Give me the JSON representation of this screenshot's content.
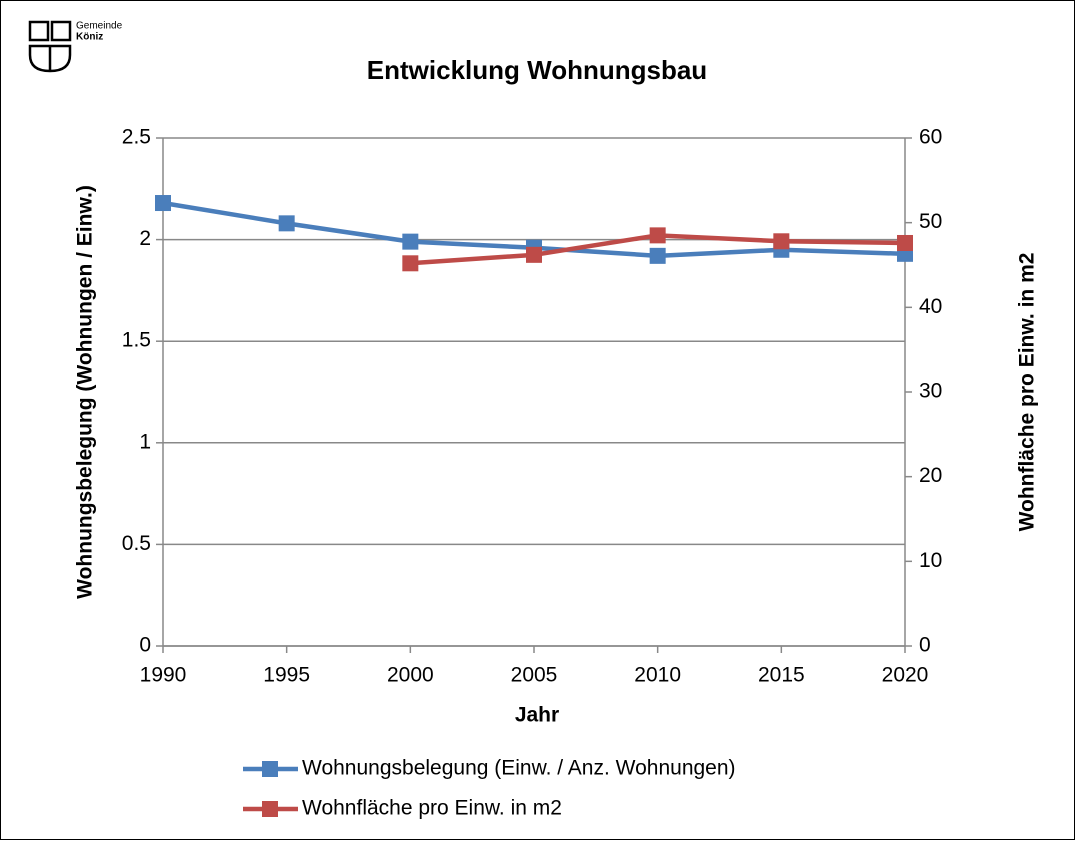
{
  "logo": {
    "line1": "Gemeinde",
    "line2": "Köniz"
  },
  "chart_data": {
    "type": "line",
    "title": "Entwicklung Wohnungsbau",
    "x": [
      1990,
      1995,
      2000,
      2005,
      2010,
      2015,
      2020
    ],
    "xlim": [
      1990,
      2020
    ],
    "xticks": [
      1990,
      1995,
      2000,
      2005,
      2010,
      2015,
      2020
    ],
    "xlabel": "Jahr",
    "ylabel": "Wohnungsbelegung (Wohnungen / Einw.)",
    "y2label": "Wohnfläche pro Einw. in m2",
    "ylim": [
      0,
      2.5
    ],
    "yticks": [
      0,
      0.5,
      1,
      1.5,
      2,
      2.5
    ],
    "y2lim": [
      0,
      60
    ],
    "y2ticks": [
      0,
      10,
      20,
      30,
      40,
      50,
      60
    ],
    "grid": true,
    "series": [
      {
        "name": "Wohnungsbelegung (Einw. / Anz. Wohnungen)",
        "color": "#4a7ebb",
        "values": [
          2.18,
          2.08,
          1.99,
          1.96,
          1.92,
          1.95,
          1.93
        ]
      },
      {
        "name": "Wohnfläche pro Einw. in m2",
        "color": "#be4b48",
        "axis": "y2",
        "values": [
          null,
          null,
          45.2,
          46.2,
          48.5,
          47.8,
          47.6
        ]
      }
    ]
  }
}
